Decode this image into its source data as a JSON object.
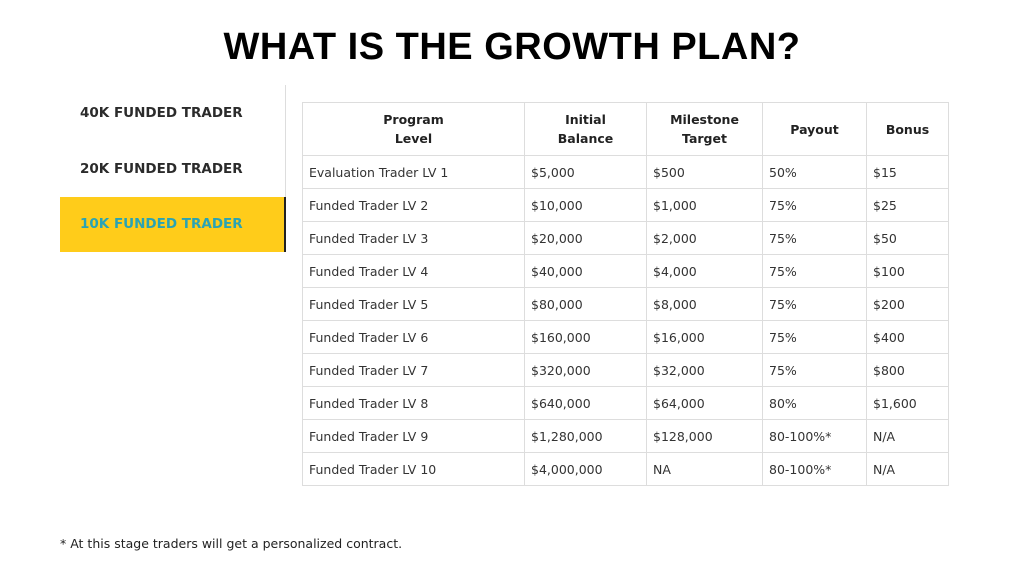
{
  "title": "WHAT IS THE GROWTH PLAN?",
  "tabs": [
    {
      "label": "40K FUNDED TRADER",
      "active": false
    },
    {
      "label": "20K FUNDED TRADER",
      "active": false
    },
    {
      "label": "10K FUNDED TRADER",
      "active": true
    }
  ],
  "table": {
    "columns": [
      "Program Level",
      "Initial Balance",
      "Milestone Target",
      "Payout",
      "Bonus"
    ],
    "rows": [
      [
        "Evaluation Trader LV 1",
        "$5,000",
        "$500",
        "50%",
        "$15"
      ],
      [
        "Funded Trader LV 2",
        "$10,000",
        "$1,000",
        "75%",
        "$25"
      ],
      [
        "Funded Trader LV 3",
        "$20,000",
        "$2,000",
        "75%",
        "$50"
      ],
      [
        "Funded Trader LV 4",
        "$40,000",
        "$4,000",
        "75%",
        "$100"
      ],
      [
        "Funded Trader LV 5",
        "$80,000",
        "$8,000",
        "75%",
        "$200"
      ],
      [
        "Funded Trader LV 6",
        "$160,000",
        "$16,000",
        "75%",
        "$400"
      ],
      [
        "Funded Trader LV 7",
        "$320,000",
        "$32,000",
        "75%",
        "$800"
      ],
      [
        "Funded Trader LV 8",
        "$640,000",
        "$64,000",
        "80%",
        "$1,600"
      ],
      [
        "Funded Trader LV 9",
        "$1,280,000",
        "$128,000",
        "80-100%*",
        "N/A"
      ],
      [
        "Funded Trader LV 10",
        "$4,000,000",
        "NA",
        "80-100%*",
        "N/A"
      ]
    ]
  },
  "footnote": "* At this stage traders will get a personalized contract."
}
